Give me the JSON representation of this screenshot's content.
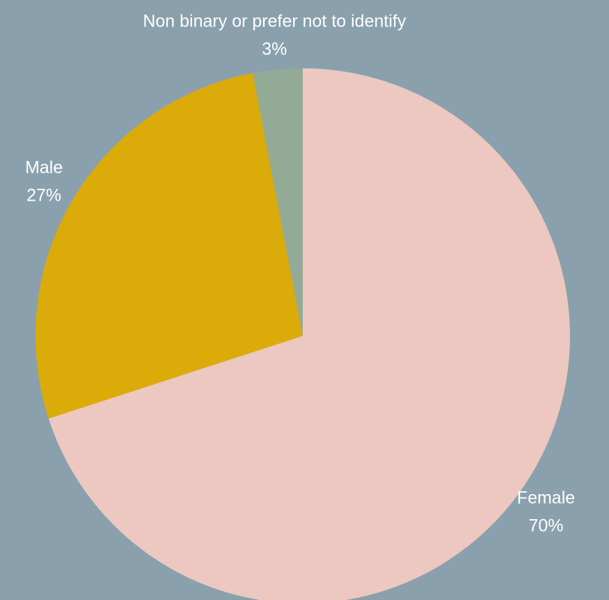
{
  "chart_data": {
    "type": "pie",
    "categories": [
      "Female",
      "Male",
      "Non binary or prefer not to identify"
    ],
    "values": [
      70,
      27,
      3
    ],
    "value_labels": [
      "70%",
      "27%",
      "3%"
    ],
    "colors": [
      "#ecc8c0",
      "#dbab0a",
      "#93ab96"
    ]
  }
}
